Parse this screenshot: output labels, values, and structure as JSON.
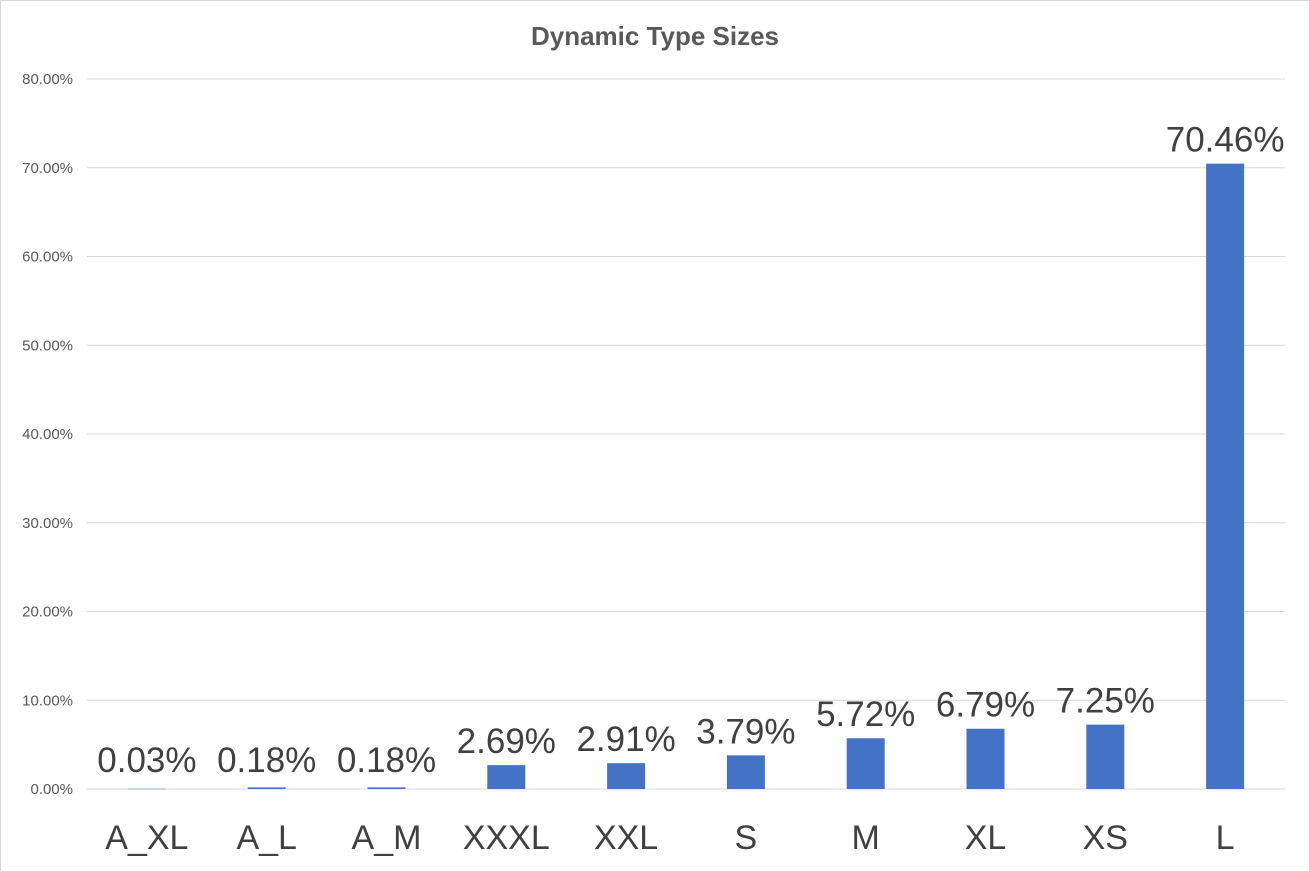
{
  "chart_data": {
    "type": "bar",
    "title": "Dynamic Type Sizes",
    "xlabel": "",
    "ylabel": "",
    "categories": [
      "A_XL",
      "A_L",
      "A_M",
      "XXXL",
      "XXL",
      "S",
      "M",
      "XL",
      "XS",
      "L"
    ],
    "values": [
      0.03,
      0.18,
      0.18,
      2.69,
      2.91,
      3.79,
      5.72,
      6.79,
      7.25,
      70.46
    ],
    "data_labels": [
      "0.03%",
      "0.18%",
      "0.18%",
      "2.69%",
      "2.91%",
      "3.79%",
      "5.72%",
      "6.79%",
      "7.25%",
      "70.46%"
    ],
    "ylim": [
      0,
      80
    ],
    "yticks": [
      0,
      10,
      20,
      30,
      40,
      50,
      60,
      70,
      80
    ],
    "ytick_labels": [
      "0.00%",
      "10.00%",
      "20.00%",
      "30.00%",
      "40.00%",
      "50.00%",
      "60.00%",
      "70.00%",
      "80.00%"
    ],
    "grid": true,
    "legend": "none",
    "bar_color": "#4472c4",
    "grid_color": "#d9d9d9"
  }
}
